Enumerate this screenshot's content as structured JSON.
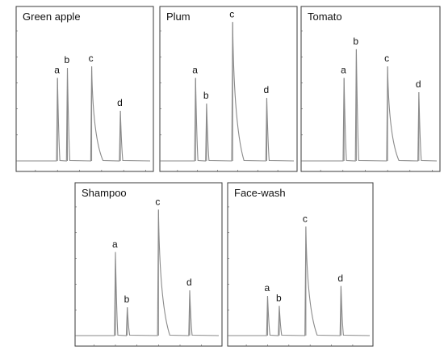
{
  "chart_data": [
    {
      "type": "line",
      "title": "Green apple",
      "peaks": [
        {
          "label": "a",
          "x": 6.0,
          "height": 0.58
        },
        {
          "label": "b",
          "x": 6.45,
          "height": 0.65
        },
        {
          "label": "c",
          "x": 7.55,
          "height": 0.66
        },
        {
          "label": "d",
          "x": 8.85,
          "height": 0.35
        }
      ],
      "xlim": [
        4.2,
        10.2
      ]
    },
    {
      "type": "line",
      "title": "Plum",
      "peaks": [
        {
          "label": "a",
          "x": 5.9,
          "height": 0.58
        },
        {
          "label": "b",
          "x": 6.45,
          "height": 0.4
        },
        {
          "label": "c",
          "x": 7.75,
          "height": 0.97
        },
        {
          "label": "d",
          "x": 9.45,
          "height": 0.44
        }
      ],
      "xlim": [
        4.2,
        10.8
      ]
    },
    {
      "type": "line",
      "title": "Tomato",
      "peaks": [
        {
          "label": "a",
          "x": 6.05,
          "height": 0.58
        },
        {
          "label": "b",
          "x": 6.6,
          "height": 0.78
        },
        {
          "label": "c",
          "x": 8.0,
          "height": 0.66
        },
        {
          "label": "d",
          "x": 9.4,
          "height": 0.48
        }
      ],
      "xlim": [
        4.2,
        10.2
      ]
    },
    {
      "type": "line",
      "title": "Shampoo",
      "peaks": [
        {
          "label": "a",
          "x": 6.0,
          "height": 0.59
        },
        {
          "label": "b",
          "x": 6.55,
          "height": 0.2
        },
        {
          "label": "c",
          "x": 8.0,
          "height": 0.89
        },
        {
          "label": "d",
          "x": 9.45,
          "height": 0.32
        }
      ],
      "xlim": [
        4.2,
        10.8
      ]
    },
    {
      "type": "line",
      "title": "Face-wash",
      "peaks": [
        {
          "label": "a",
          "x": 6.0,
          "height": 0.28
        },
        {
          "label": "b",
          "x": 6.55,
          "height": 0.21
        },
        {
          "label": "c",
          "x": 7.8,
          "height": 0.77
        },
        {
          "label": "d",
          "x": 9.45,
          "height": 0.35
        }
      ],
      "xlim": [
        4.2,
        10.8
      ]
    }
  ]
}
